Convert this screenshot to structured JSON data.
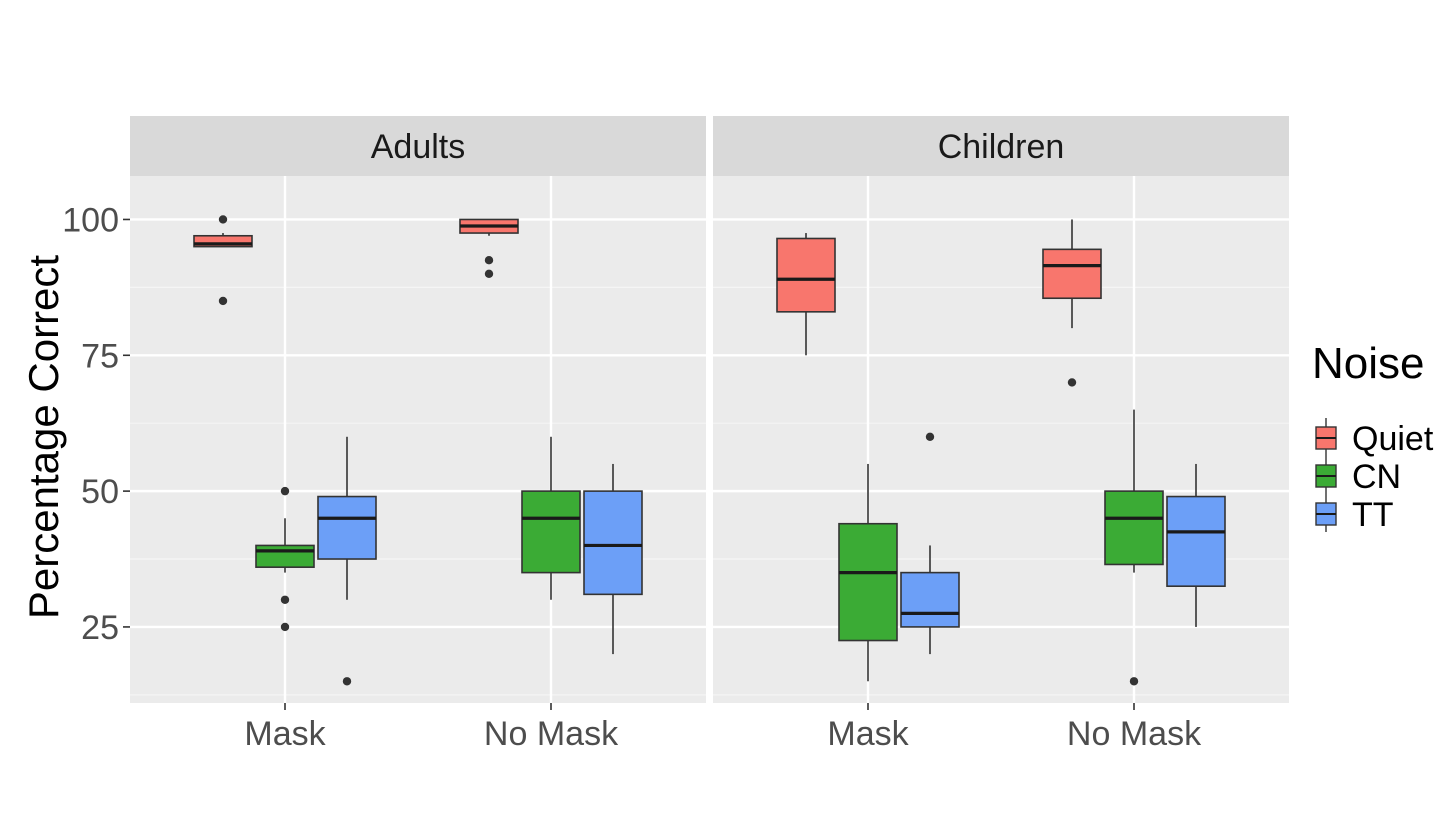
{
  "chart_data": {
    "type": "box",
    "ylabel": "Percentage Correct",
    "ylim": [
      11,
      108
    ],
    "yticks": [
      25,
      50,
      75,
      100
    ],
    "grid": true,
    "legend": {
      "title": "Noise",
      "placement": "right"
    },
    "categories": [
      "Mask",
      "No Mask"
    ],
    "series_colors": {
      "Quiet": "#f8766d",
      "CN": "#3bab35",
      "TT": "#6c9ff7"
    },
    "facets": [
      {
        "label": "Adults",
        "groups": [
          {
            "category": "Mask",
            "series": "Quiet",
            "whisker_low": 95,
            "q1": 95,
            "median": 95.5,
            "q3": 97,
            "whisker_high": 97.5,
            "outliers": [
              100,
              85
            ]
          },
          {
            "category": "Mask",
            "series": "CN",
            "whisker_low": 35,
            "q1": 36,
            "median": 39,
            "q3": 40,
            "whisker_high": 45,
            "outliers": [
              50,
              30,
              25
            ]
          },
          {
            "category": "Mask",
            "series": "TT",
            "whisker_low": 30,
            "q1": 37.5,
            "median": 45,
            "q3": 49,
            "whisker_high": 60,
            "outliers": [
              15
            ]
          },
          {
            "category": "No Mask",
            "series": "Quiet",
            "whisker_low": 97,
            "q1": 97.5,
            "median": 98.8,
            "q3": 100,
            "whisker_high": 100,
            "outliers": [
              92.5,
              90
            ]
          },
          {
            "category": "No Mask",
            "series": "CN",
            "whisker_low": 30,
            "q1": 35,
            "median": 45,
            "q3": 50,
            "whisker_high": 60,
            "outliers": []
          },
          {
            "category": "No Mask",
            "series": "TT",
            "whisker_low": 20,
            "q1": 31,
            "median": 40,
            "q3": 50,
            "whisker_high": 55,
            "outliers": []
          }
        ]
      },
      {
        "label": "Children",
        "groups": [
          {
            "category": "Mask",
            "series": "Quiet",
            "whisker_low": 75,
            "q1": 83,
            "median": 89,
            "q3": 96.5,
            "whisker_high": 97.5,
            "outliers": []
          },
          {
            "category": "Mask",
            "series": "CN",
            "whisker_low": 15,
            "q1": 22.5,
            "median": 35,
            "q3": 44,
            "whisker_high": 55,
            "outliers": []
          },
          {
            "category": "Mask",
            "series": "TT",
            "whisker_low": 20,
            "q1": 25,
            "median": 27.5,
            "q3": 35,
            "whisker_high": 40,
            "outliers": [
              60
            ]
          },
          {
            "category": "No Mask",
            "series": "Quiet",
            "whisker_low": 80,
            "q1": 85.5,
            "median": 91.5,
            "q3": 94.5,
            "whisker_high": 100,
            "outliers": [
              70
            ]
          },
          {
            "category": "No Mask",
            "series": "CN",
            "whisker_low": 35,
            "q1": 36.5,
            "median": 45,
            "q3": 50,
            "whisker_high": 65,
            "outliers": [
              15
            ]
          },
          {
            "category": "No Mask",
            "series": "TT",
            "whisker_low": 25,
            "q1": 32.5,
            "median": 42.5,
            "q3": 49,
            "whisker_high": 55,
            "outliers": []
          }
        ]
      }
    ]
  }
}
